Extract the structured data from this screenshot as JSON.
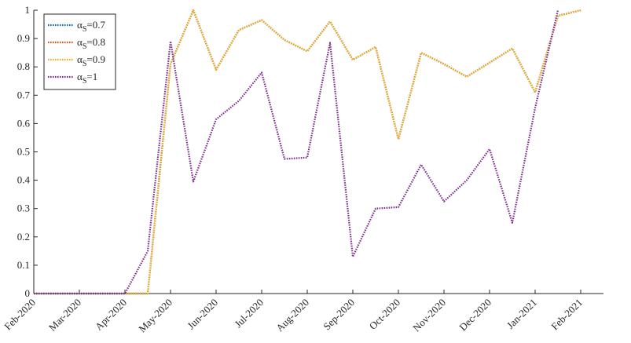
{
  "chart_data": {
    "type": "line",
    "x_labels": [
      "Feb-2020",
      "Mar-2020",
      "Apr-2020",
      "May-2020",
      "Jun-2020",
      "Jul-2020",
      "Aug-2020",
      "Sep-2020",
      "Oct-2020",
      "Nov-2020",
      "Dec-2020",
      "Jan-2021",
      "Feb-2021"
    ],
    "x_tick_positions": [
      0,
      2,
      4,
      6,
      8,
      10,
      12,
      14,
      16,
      18,
      20,
      22,
      24
    ],
    "x_points": [
      0,
      1,
      2,
      3,
      4,
      5,
      6,
      7,
      8,
      9,
      10,
      11,
      12,
      13,
      14,
      15,
      16,
      17,
      18,
      19,
      20,
      21,
      22,
      23,
      24
    ],
    "xlim": [
      0,
      25
    ],
    "ylim": [
      0,
      1
    ],
    "y_ticks": [
      "0",
      "0.1",
      "0.2",
      "0.3",
      "0.4",
      "0.5",
      "0.6",
      "0.7",
      "0.8",
      "0.9",
      "1"
    ],
    "legend_position": "top-left",
    "series": [
      {
        "name": "αS=0.7",
        "symbol": "α",
        "sub": "S",
        "suffix": "=0.7",
        "color": "#0072BD",
        "values": [
          0,
          0,
          0,
          0,
          0,
          0,
          0.81,
          1.0,
          0.79,
          0.93,
          0.965,
          0.895,
          0.855,
          0.96,
          0.825,
          0.87,
          0.545,
          0.85,
          0.81,
          0.765,
          0.815,
          0.865,
          0.71,
          0.98,
          1.0
        ]
      },
      {
        "name": "αS=0.8",
        "symbol": "α",
        "sub": "S",
        "suffix": "=0.8",
        "color": "#D95319",
        "values": [
          0,
          0,
          0,
          0,
          0,
          0,
          0.81,
          1.0,
          0.79,
          0.93,
          0.965,
          0.895,
          0.855,
          0.96,
          0.825,
          0.87,
          0.545,
          0.85,
          0.81,
          0.765,
          0.815,
          0.865,
          0.71,
          0.98,
          1.0
        ]
      },
      {
        "name": "αS=0.9",
        "symbol": "α",
        "sub": "S",
        "suffix": "=0.9",
        "color": "#EDB120",
        "values": [
          0,
          0,
          0,
          0,
          0,
          0,
          0.81,
          1.0,
          0.79,
          0.93,
          0.965,
          0.895,
          0.855,
          0.96,
          0.825,
          0.87,
          0.545,
          0.85,
          0.81,
          0.765,
          0.815,
          0.865,
          0.71,
          0.98,
          1.0
        ]
      },
      {
        "name": "αS=1",
        "symbol": "α",
        "sub": "S",
        "suffix": "=1",
        "color": "#7E2F8E",
        "values": [
          0,
          0,
          0,
          0,
          0,
          0.15,
          0.89,
          0.395,
          0.615,
          0.68,
          0.78,
          0.475,
          0.48,
          0.885,
          0.13,
          0.3,
          0.305,
          0.455,
          0.325,
          0.4,
          0.51,
          0.25,
          0.655,
          1.0,
          null
        ]
      }
    ]
  }
}
